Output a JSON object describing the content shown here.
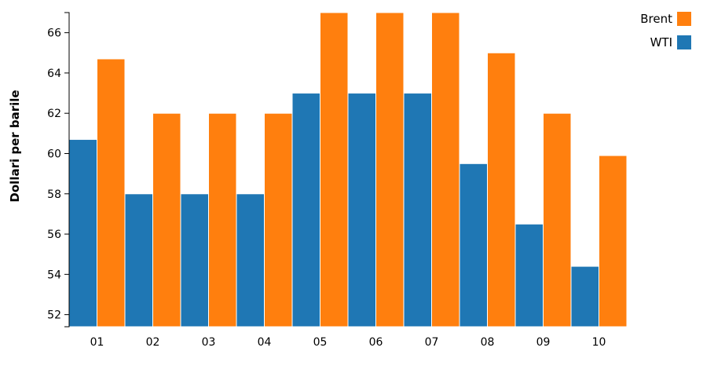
{
  "chart_data": {
    "type": "bar",
    "title": "",
    "xlabel": "",
    "ylabel": "Dollari per barile",
    "categories": [
      "01",
      "02",
      "03",
      "04",
      "05",
      "06",
      "07",
      "08",
      "09",
      "10"
    ],
    "series": [
      {
        "name": "WTI",
        "color": "#1f77b4",
        "values": [
          60.7,
          58,
          58,
          58,
          63,
          63,
          63,
          59.5,
          56.5,
          54.4
        ]
      },
      {
        "name": "Brent",
        "color": "#ff7f0e",
        "values": [
          64.7,
          62,
          62,
          62,
          67,
          67,
          67,
          65,
          62,
          59.9
        ]
      }
    ],
    "ylim": [
      51.4,
      67
    ],
    "yticks": [
      52,
      54,
      56,
      58,
      60,
      62,
      64,
      66
    ],
    "legend_position": "top-right",
    "legend_order": [
      "Brent",
      "WTI"
    ],
    "grid": false
  }
}
